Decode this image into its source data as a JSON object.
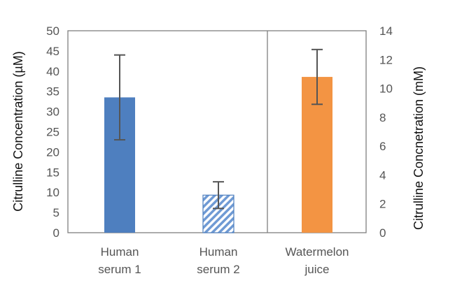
{
  "chart_data": {
    "type": "bar",
    "categories": [
      "Human serum 1",
      "Human serum 2",
      "Watermelon juice"
    ],
    "category_label_lines": [
      [
        "Human",
        "serum 1"
      ],
      [
        "Human",
        "serum 2"
      ],
      [
        "Watermelon",
        "juice"
      ]
    ],
    "series": [
      {
        "values": [
          33.5,
          9.3,
          null
        ],
        "error": [
          10.5,
          3.3,
          null
        ],
        "axis": "left"
      },
      {
        "values": [
          null,
          null,
          10.8
        ],
        "error": [
          null,
          null,
          1.9
        ],
        "axis": "right"
      }
    ],
    "bar_colors": [
      "#4e7fbf",
      "pattern:diagonal-hatch-blue",
      "#f39443"
    ],
    "error_bar_color": "#555555",
    "ylabel": "Citrulline Concentration (µM)",
    "ylim": [
      0,
      50
    ],
    "yticks": [
      0,
      5,
      10,
      15,
      20,
      25,
      30,
      35,
      40,
      45,
      50
    ],
    "ylabel_right": "Citrulline Concnetration (mM)",
    "ylim_right": [
      0,
      14
    ],
    "yticks_right": [
      0,
      2,
      4,
      6,
      8,
      10,
      12,
      14
    ],
    "grid": false,
    "legend": "none"
  }
}
